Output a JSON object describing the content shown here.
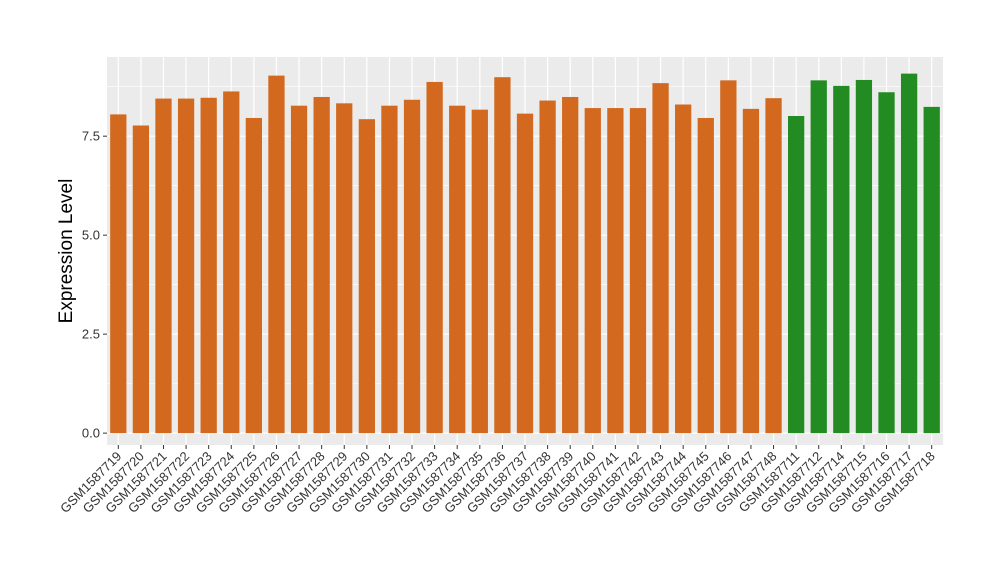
{
  "chart_data": {
    "type": "bar",
    "title": "",
    "xlabel": "",
    "ylabel": "Expression Level",
    "ylim": [
      -0.3,
      9.5
    ],
    "yticks": [
      0.0,
      2.5,
      5.0,
      7.5
    ],
    "ytick_labels": [
      "0.0",
      "2.5",
      "5.0",
      "7.5"
    ],
    "grid": true,
    "legend": "none",
    "colors": {
      "group_a": "#D2691E",
      "group_b": "#228B22",
      "panel": "#EBEBEB",
      "gridline": "#FFFFFF"
    },
    "categories": [
      "GSM1587719",
      "GSM1587720",
      "GSM1587721",
      "GSM1587722",
      "GSM1587723",
      "GSM1587724",
      "GSM1587725",
      "GSM1587726",
      "GSM1587727",
      "GSM1587728",
      "GSM1587729",
      "GSM1587730",
      "GSM1587731",
      "GSM1587732",
      "GSM1587733",
      "GSM1587734",
      "GSM1587735",
      "GSM1587736",
      "GSM1587737",
      "GSM1587738",
      "GSM1587739",
      "GSM1587740",
      "GSM1587741",
      "GSM1587742",
      "GSM1587743",
      "GSM1587744",
      "GSM1587745",
      "GSM1587746",
      "GSM1587747",
      "GSM1587748",
      "GSM1587711",
      "GSM1587712",
      "GSM1587714",
      "GSM1587715",
      "GSM1587716",
      "GSM1587717",
      "GSM1587718"
    ],
    "values": [
      8.05,
      7.77,
      8.45,
      8.45,
      8.47,
      8.63,
      7.96,
      9.03,
      8.27,
      8.49,
      8.33,
      7.93,
      8.27,
      8.42,
      8.87,
      8.27,
      8.17,
      8.99,
      8.07,
      8.4,
      8.49,
      8.21,
      8.21,
      8.21,
      8.84,
      8.3,
      7.96,
      8.91,
      8.19,
      8.46,
      8.01,
      8.91,
      8.77,
      8.92,
      8.61,
      9.08,
      8.24
    ],
    "groups": [
      "a",
      "a",
      "a",
      "a",
      "a",
      "a",
      "a",
      "a",
      "a",
      "a",
      "a",
      "a",
      "a",
      "a",
      "a",
      "a",
      "a",
      "a",
      "a",
      "a",
      "a",
      "a",
      "a",
      "a",
      "a",
      "a",
      "a",
      "a",
      "a",
      "a",
      "b",
      "b",
      "b",
      "b",
      "b",
      "b",
      "b"
    ]
  }
}
